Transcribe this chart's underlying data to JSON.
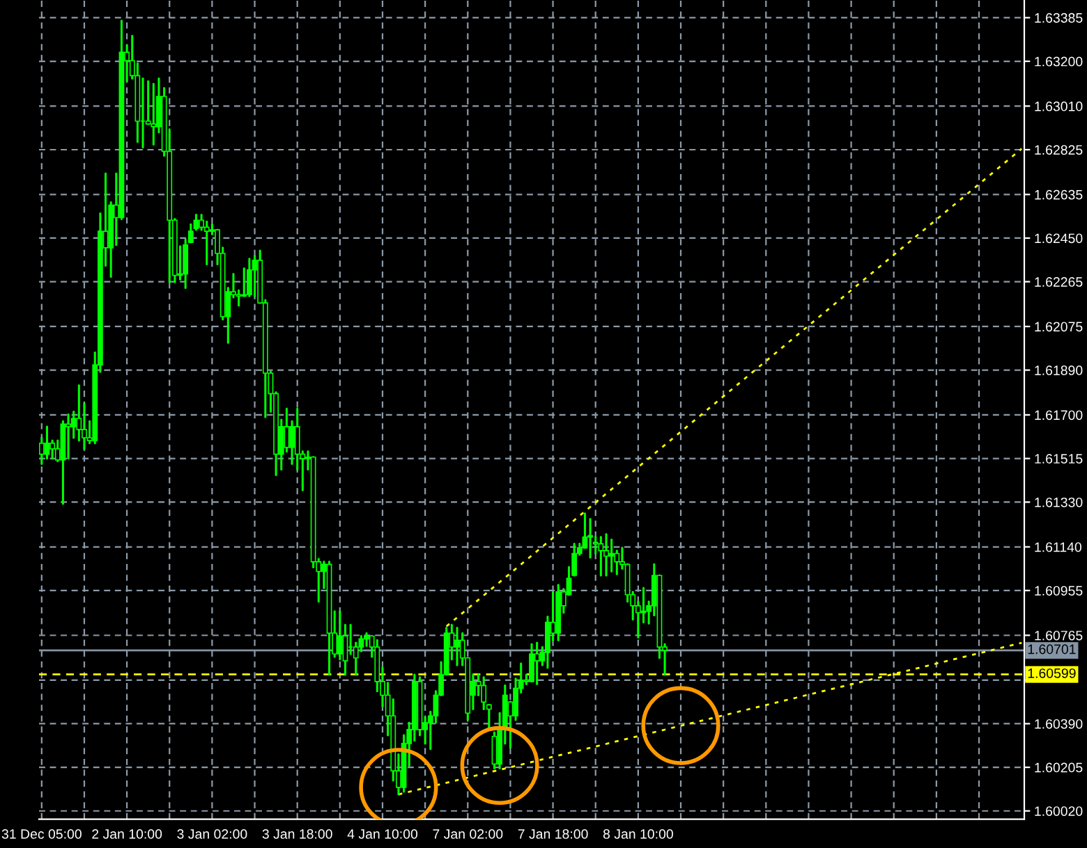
{
  "chart_data": {
    "type": "candlestick",
    "categories": [
      "31 Dec 05:00",
      null,
      null,
      null,
      null,
      null,
      null,
      null,
      null,
      null,
      null,
      null,
      null,
      null,
      null,
      null,
      "2 Jan 10:00",
      null,
      null,
      null,
      null,
      null,
      null,
      null,
      null,
      null,
      null,
      null,
      null,
      null,
      null,
      null,
      "3 Jan 02:00",
      null,
      null,
      null,
      null,
      null,
      null,
      null,
      null,
      null,
      null,
      null,
      null,
      null,
      null,
      null,
      "3 Jan 18:00",
      null,
      null,
      null,
      null,
      null,
      null,
      null,
      null,
      null,
      null,
      null,
      null,
      null,
      null,
      null,
      "4 Jan 10:00",
      null,
      null,
      null,
      null,
      null,
      null,
      null,
      null,
      null,
      null,
      null,
      null,
      null,
      null,
      null,
      "7 Jan 02:00",
      null,
      null,
      null,
      null,
      null,
      null,
      null,
      null,
      null,
      null,
      null,
      null,
      null,
      null,
      null,
      "7 Jan 18:00",
      null,
      null,
      null,
      null,
      null,
      null,
      null,
      null,
      null,
      null,
      null,
      null,
      null,
      null,
      null,
      "8 Jan 10:00",
      null,
      null,
      null,
      null,
      null,
      null,
      null,
      null,
      null,
      null,
      null,
      null,
      null,
      null,
      null,
      null,
      null,
      null,
      null,
      null,
      null,
      null,
      null,
      null,
      null,
      null,
      null,
      null,
      null,
      null,
      null,
      null,
      null,
      null,
      null,
      null,
      null,
      null,
      null,
      null,
      null,
      null,
      null,
      null,
      null,
      null,
      null,
      null,
      null,
      null,
      null,
      null,
      null,
      null,
      null,
      null,
      null,
      null,
      null,
      null,
      null,
      null,
      null,
      null,
      null,
      null,
      null,
      null,
      null,
      null,
      null,
      null
    ],
    "series": [
      {
        "type": "candlestick",
        "color": "#00ff00",
        "ohlc": [
          [
            1.6158,
            1.61603,
            1.61492,
            1.61533
          ],
          [
            1.61533,
            1.6165,
            1.61515,
            1.6158
          ],
          [
            1.6158,
            1.61591,
            1.61515,
            1.61556
          ],
          [
            1.61556,
            1.61591,
            1.61504,
            1.61509
          ],
          [
            1.61509,
            1.61673,
            1.61323,
            1.61661
          ],
          [
            1.61661,
            1.61702,
            1.61515,
            1.6165
          ],
          [
            1.6165,
            1.61714,
            1.61603,
            1.61685
          ],
          [
            1.61685,
            1.61825,
            1.61591,
            1.61638
          ],
          [
            1.61638,
            1.61749,
            1.61556,
            1.61603
          ],
          [
            1.61603,
            1.61673,
            1.6158,
            1.61591
          ],
          [
            1.61591,
            1.61965,
            1.6158,
            1.61912
          ],
          [
            1.61912,
            1.62555,
            1.61883,
            1.62479
          ],
          [
            1.62479,
            1.62724,
            1.62333,
            1.62409
          ],
          [
            1.62409,
            1.62602,
            1.62286,
            1.6259
          ],
          [
            1.6259,
            1.62724,
            1.62421,
            1.62537
          ],
          [
            1.62537,
            1.63372,
            1.62531,
            1.63238
          ],
          [
            1.63238,
            1.63267,
            1.63115,
            1.63203
          ],
          [
            1.63203,
            1.63308,
            1.63127,
            1.63139
          ],
          [
            1.63139,
            1.63191,
            1.62858,
            1.62946
          ],
          [
            1.62946,
            1.63127,
            1.62835,
            1.62946
          ],
          [
            1.62946,
            1.63115,
            1.62934,
            1.62934
          ],
          [
            1.62934,
            1.63104,
            1.62847,
            1.62923
          ],
          [
            1.62923,
            1.63127,
            1.62899,
            1.63051
          ],
          [
            1.63051,
            1.63086,
            1.628,
            1.62818
          ],
          [
            1.62818,
            1.62911,
            1.62263,
            1.62526
          ],
          [
            1.62526,
            1.62531,
            1.62263,
            1.62292
          ],
          [
            1.62292,
            1.62415,
            1.62275,
            1.62298
          ],
          [
            1.62298,
            1.62444,
            1.62239,
            1.62421
          ],
          [
            1.62432,
            1.62508,
            1.62432,
            1.62479
          ],
          [
            1.62491,
            1.62549,
            1.62485,
            1.62526
          ],
          [
            1.62526,
            1.62549,
            1.62485,
            1.62496
          ],
          [
            1.62496,
            1.6252,
            1.62339,
            1.62479
          ],
          [
            1.62479,
            1.62508,
            1.62467,
            1.62485
          ],
          [
            1.62485,
            1.62485,
            1.62339,
            1.62385
          ],
          [
            1.62385,
            1.62409,
            1.62105,
            1.62117
          ],
          [
            1.62117,
            1.62239,
            1.62006,
            1.62222
          ],
          [
            1.62222,
            1.62298,
            1.62199,
            1.6221
          ],
          [
            1.6221,
            1.62228,
            1.62164,
            1.62204
          ],
          [
            1.62204,
            1.62321,
            1.62204,
            1.6221
          ],
          [
            1.6221,
            1.62362,
            1.62204,
            1.62315
          ],
          [
            1.62315,
            1.62374,
            1.62204,
            1.62356
          ],
          [
            1.62356,
            1.62397,
            1.62175,
            1.62175
          ],
          [
            1.62175,
            1.62187,
            1.61691,
            1.61877
          ],
          [
            1.61877,
            1.61883,
            1.61714,
            1.6179
          ],
          [
            1.6179,
            1.61796,
            1.61445,
            1.61533
          ],
          [
            1.61533,
            1.61679,
            1.61469,
            1.6165
          ],
          [
            1.6165,
            1.61726,
            1.61545,
            1.61562
          ],
          [
            1.61562,
            1.61673,
            1.61492,
            1.6165
          ],
          [
            1.6165,
            1.61726,
            1.61469,
            1.61533
          ],
          [
            1.61533,
            1.61545,
            1.61381,
            1.61515
          ],
          [
            1.61515,
            1.61545,
            1.61469,
            1.61521
          ],
          [
            1.61521,
            1.61521,
            1.61054,
            1.61077
          ],
          [
            1.61077,
            1.61089,
            1.60908,
            1.61036
          ],
          [
            1.61036,
            1.61077,
            1.60966,
            1.61066
          ],
          [
            1.61066,
            1.61077,
            1.60598,
            1.60774
          ],
          [
            1.60774,
            1.60867,
            1.60674,
            1.60686
          ],
          [
            1.60686,
            1.60867,
            1.60663,
            1.60762
          ],
          [
            1.60762,
            1.60809,
            1.60598,
            1.60657
          ],
          [
            1.60715,
            1.60809,
            1.60686,
            1.60715
          ],
          [
            1.60715,
            1.60733,
            1.60598,
            1.60669
          ],
          [
            1.60715,
            1.60762,
            1.60698,
            1.6075
          ],
          [
            1.6075,
            1.60774,
            1.60721,
            1.60762
          ],
          [
            1.60762,
            1.60762,
            1.60674,
            1.60715
          ],
          [
            1.60715,
            1.60744,
            1.60528,
            1.60569
          ],
          [
            1.60569,
            1.60628,
            1.60464,
            1.60511
          ],
          [
            1.60511,
            1.60563,
            1.60341,
            1.60423
          ],
          [
            1.60423,
            1.60493,
            1.60149,
            1.6019
          ],
          [
            1.6019,
            1.6026,
            1.6009,
            1.6012
          ],
          [
            1.6012,
            1.60341,
            1.60102,
            1.60306
          ],
          [
            1.60306,
            1.60394,
            1.60213,
            1.60365
          ],
          [
            1.60365,
            1.60598,
            1.60318,
            1.60569
          ],
          [
            1.60569,
            1.60587,
            1.60341,
            1.60365
          ],
          [
            1.60365,
            1.60417,
            1.60306,
            1.60394
          ],
          [
            1.60394,
            1.60441,
            1.60283,
            1.60423
          ],
          [
            1.60423,
            1.60528,
            1.60394,
            1.60511
          ],
          [
            1.60511,
            1.60651,
            1.60511,
            1.60598
          ],
          [
            1.60598,
            1.60797,
            1.60598,
            1.60774
          ],
          [
            1.60774,
            1.60809,
            1.60663,
            1.60715
          ],
          [
            1.60715,
            1.60797,
            1.60639,
            1.60744
          ],
          [
            1.60744,
            1.60774,
            1.60639,
            1.60669
          ],
          [
            1.60669,
            1.60669,
            1.60406,
            1.60435
          ],
          [
            1.60511,
            1.60598,
            1.60452,
            1.60569
          ],
          [
            1.60569,
            1.60598,
            1.60511,
            1.60552
          ],
          [
            1.60552,
            1.60587,
            1.60452,
            1.60482
          ],
          [
            1.6047,
            1.6047,
            1.60365,
            1.60452
          ],
          [
            1.60336,
            1.60353,
            1.60201,
            1.60219
          ],
          [
            1.60219,
            1.60435,
            1.60201,
            1.60365
          ],
          [
            1.60365,
            1.60552,
            1.60306,
            1.60511
          ],
          [
            1.60482,
            1.60482,
            1.60289,
            1.60423
          ],
          [
            1.60423,
            1.60581,
            1.60406,
            1.6054
          ],
          [
            1.6054,
            1.60645,
            1.60523,
            1.60575
          ],
          [
            1.60575,
            1.60598,
            1.60558,
            1.60569
          ],
          [
            1.60569,
            1.60727,
            1.60569,
            1.60686
          ],
          [
            1.60686,
            1.60733,
            1.60558,
            1.60657
          ],
          [
            1.60657,
            1.60715,
            1.60639,
            1.60692
          ],
          [
            1.60692,
            1.60844,
            1.60628,
            1.6082
          ],
          [
            1.6082,
            1.60949,
            1.60744,
            1.60774
          ],
          [
            1.60774,
            1.60978,
            1.60744,
            1.60949
          ],
          [
            1.60949,
            1.60961,
            1.60861,
            1.6089
          ],
          [
            1.60937,
            1.61054,
            1.60937,
            1.61007
          ],
          [
            1.61019,
            1.61153,
            1.61019,
            1.61112
          ],
          [
            1.61112,
            1.61153,
            1.61107,
            1.61136
          ],
          [
            1.61136,
            1.61282,
            1.61136,
            1.61182
          ],
          [
            1.61182,
            1.61258,
            1.61095,
            1.61188
          ],
          [
            1.61159,
            1.61182,
            1.61112,
            1.61153
          ],
          [
            1.61153,
            1.61182,
            1.61019,
            1.61124
          ],
          [
            1.61124,
            1.61194,
            1.61019,
            1.61101
          ],
          [
            1.61101,
            1.61171,
            1.61036,
            1.61112
          ],
          [
            1.61112,
            1.61124,
            1.61025,
            1.61077
          ],
          [
            1.61077,
            1.61136,
            1.61048,
            1.61066
          ],
          [
            1.61066,
            1.61066,
            1.60908,
            1.60937
          ],
          [
            1.60937,
            1.60949,
            1.60832,
            1.6089
          ],
          [
            1.6089,
            1.60908,
            1.60756,
            1.60861
          ],
          [
            1.60861,
            1.60966,
            1.6082,
            1.60867
          ],
          [
            1.60867,
            1.60908,
            1.60815,
            1.6089
          ],
          [
            1.6089,
            1.61066,
            1.6085,
            1.61019
          ],
          [
            1.61019,
            1.61019,
            1.60669,
            1.60715
          ],
          [
            1.60715,
            1.60727,
            1.60598,
            1.60701
          ],
          null,
          null,
          null,
          null,
          null,
          null,
          null,
          null,
          null,
          null,
          null,
          null,
          null,
          null,
          null,
          null,
          null,
          null,
          null,
          null,
          null,
          null,
          null,
          null,
          null,
          null,
          null,
          null,
          null,
          null,
          null,
          null,
          null,
          null,
          null,
          null,
          null,
          null,
          null,
          null,
          null,
          null,
          null,
          null,
          null,
          null,
          null,
          null,
          null,
          null,
          null,
          null,
          null,
          null,
          null,
          null,
          null,
          null,
          null,
          null,
          null,
          null,
          null,
          null,
          null,
          null,
          null
        ]
      },
      {
        "type": "line",
        "color": "#ffff00",
        "line_style": "dotted",
        "values": [
          null,
          null,
          null,
          null,
          null,
          null,
          null,
          null,
          null,
          null,
          null,
          null,
          null,
          null,
          null,
          null,
          null,
          null,
          null,
          null,
          null,
          null,
          null,
          null,
          null,
          null,
          null,
          null,
          null,
          null,
          null,
          null,
          null,
          null,
          null,
          null,
          null,
          null,
          null,
          null,
          null,
          null,
          null,
          null,
          null,
          null,
          null,
          null,
          null,
          null,
          null,
          null,
          null,
          null,
          null,
          null,
          null,
          null,
          null,
          null,
          null,
          null,
          null,
          null,
          null,
          null,
          null,
          1.6009,
          null,
          null,
          null,
          null,
          null,
          null,
          null,
          null,
          null,
          null,
          null,
          null,
          null,
          null,
          null,
          null,
          null,
          null,
          null,
          null,
          null,
          null,
          null,
          null,
          null,
          null,
          null,
          null,
          null,
          null,
          null,
          null,
          null,
          null,
          null,
          null,
          null,
          null,
          null,
          null,
          null,
          null,
          null,
          null,
          null,
          null,
          null,
          null,
          null,
          null,
          null,
          null,
          null,
          null,
          null,
          null,
          null,
          null,
          null,
          null,
          null,
          null,
          null,
          null,
          null,
          null,
          null,
          null,
          null,
          null,
          null,
          null,
          null,
          null,
          null,
          null,
          null,
          null,
          null,
          null,
          null,
          null,
          null,
          null,
          null,
          null,
          null,
          null,
          null,
          null,
          null,
          null,
          null,
          null,
          null,
          null,
          null,
          null,
          null,
          null,
          null,
          null,
          null,
          null,
          null,
          null,
          null,
          null,
          null,
          null,
          null,
          null,
          null,
          null,
          null,
          null,
          1.60733
        ]
      },
      {
        "type": "line",
        "color": "#ffff00",
        "line_style": "dotted",
        "values": [
          null,
          null,
          null,
          null,
          null,
          null,
          null,
          null,
          null,
          null,
          null,
          null,
          null,
          null,
          null,
          null,
          null,
          null,
          null,
          null,
          null,
          null,
          null,
          null,
          null,
          null,
          null,
          null,
          null,
          null,
          null,
          null,
          null,
          null,
          null,
          null,
          null,
          null,
          null,
          null,
          null,
          null,
          null,
          null,
          null,
          null,
          null,
          null,
          null,
          null,
          null,
          null,
          null,
          null,
          null,
          null,
          null,
          null,
          null,
          null,
          null,
          null,
          null,
          null,
          null,
          null,
          null,
          null,
          null,
          null,
          null,
          null,
          null,
          null,
          null,
          null,
          1.60803,
          null,
          null,
          null,
          null,
          null,
          null,
          null,
          null,
          null,
          null,
          null,
          null,
          null,
          null,
          null,
          null,
          null,
          null,
          null,
          null,
          null,
          null,
          null,
          null,
          null,
          null,
          null,
          null,
          null,
          null,
          null,
          null,
          null,
          null,
          null,
          null,
          null,
          null,
          null,
          null,
          null,
          null,
          null,
          null,
          null,
          null,
          null,
          null,
          null,
          null,
          null,
          null,
          null,
          null,
          null,
          null,
          null,
          null,
          null,
          null,
          null,
          null,
          null,
          null,
          null,
          null,
          null,
          null,
          null,
          null,
          null,
          null,
          null,
          null,
          null,
          null,
          null,
          null,
          null,
          null,
          null,
          null,
          null,
          null,
          null,
          null,
          null,
          null,
          null,
          null,
          null,
          null,
          null,
          null,
          null,
          null,
          null,
          null,
          null,
          null,
          null,
          null,
          null,
          null,
          null,
          null,
          null,
          1.62829
        ]
      },
      {
        "type": "scatter",
        "color": "#ff9900",
        "marker": "circle",
        "values": [
          null,
          null,
          null,
          null,
          null,
          null,
          null,
          null,
          null,
          null,
          null,
          null,
          null,
          null,
          null,
          null,
          null,
          null,
          null,
          null,
          null,
          null,
          null,
          null,
          null,
          null,
          null,
          null,
          null,
          null,
          null,
          null,
          null,
          null,
          null,
          null,
          null,
          null,
          null,
          null,
          null,
          null,
          null,
          null,
          null,
          null,
          null,
          null,
          null,
          null,
          null,
          null,
          null,
          null,
          null,
          null,
          null,
          null,
          null,
          null,
          null,
          null,
          null,
          null,
          null,
          null,
          null,
          1.6012,
          null,
          null,
          null,
          null,
          null,
          null,
          null,
          null,
          null,
          null,
          null,
          null,
          null,
          null,
          null,
          null,
          null,
          null,
          1.60213,
          null,
          null,
          null,
          null,
          null,
          null,
          null,
          null,
          null,
          null,
          null,
          null,
          null,
          null,
          null,
          null,
          null,
          null,
          null,
          null,
          null,
          null,
          null,
          null,
          null,
          null,
          null,
          null,
          null,
          null,
          null,
          null,
          null,
          1.60382,
          null,
          null,
          null,
          null,
          null,
          null,
          null,
          null,
          null,
          null,
          null,
          null,
          null,
          null,
          null,
          null,
          null,
          null,
          null,
          null,
          null,
          null,
          null,
          null,
          null,
          null,
          null,
          null,
          null,
          null,
          null,
          null,
          null,
          null,
          null,
          null,
          null,
          null,
          null,
          null,
          null,
          null,
          null,
          null,
          null,
          null,
          null,
          null,
          null,
          null,
          null,
          null,
          null,
          null,
          null,
          null,
          null,
          null,
          null,
          null,
          null,
          null,
          null,
          null
        ]
      }
    ],
    "ylim": [
      1.59985,
      1.6346
    ],
    "yticks": [
      {
        "value": 1.6002,
        "label": "1.60020"
      },
      {
        "value": 1.60205,
        "label": "1.60205"
      },
      {
        "value": 1.6039,
        "label": "1.60390"
      },
      {
        "value": 1.60575,
        "label": null
      },
      {
        "value": 1.60765,
        "label": "1.60765"
      },
      {
        "value": 1.60955,
        "label": "1.60955"
      },
      {
        "value": 1.6114,
        "label": "1.61140"
      },
      {
        "value": 1.6133,
        "label": "1.61330"
      },
      {
        "value": 1.61515,
        "label": "1.61515"
      },
      {
        "value": 1.617,
        "label": "1.61700"
      },
      {
        "value": 1.6189,
        "label": "1.61890"
      },
      {
        "value": 1.62075,
        "label": "1.62075"
      },
      {
        "value": 1.62265,
        "label": "1.62265"
      },
      {
        "value": 1.6245,
        "label": "1.62450"
      },
      {
        "value": 1.62635,
        "label": "1.62635"
      },
      {
        "value": 1.62825,
        "label": "1.62825"
      },
      {
        "value": 1.6301,
        "label": "1.63010"
      },
      {
        "value": 1.632,
        "label": "1.63200"
      },
      {
        "value": 1.63385,
        "label": "1.63385"
      }
    ],
    "ref_lines": [
      {
        "axis": "y",
        "value": 1.60701,
        "label": "1.60701",
        "color": "#8595a5",
        "line_style": "solid"
      },
      {
        "axis": "y",
        "value": 1.60599,
        "label": "1.60599",
        "color": "#ffff00",
        "line_style": "dashed"
      }
    ],
    "grid": true
  }
}
